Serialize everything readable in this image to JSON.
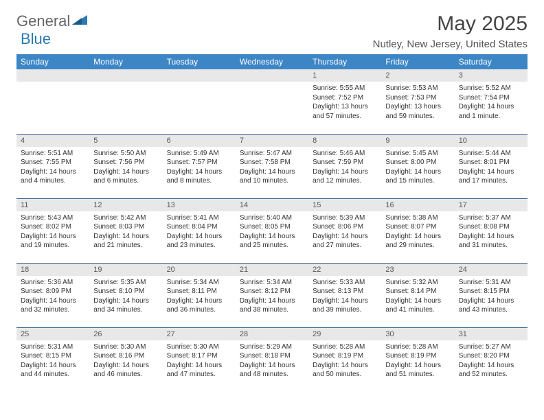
{
  "logo": {
    "part1": "General",
    "part2": "Blue"
  },
  "title": "May 2025",
  "location": "Nutley, New Jersey, United States",
  "colors": {
    "header_bg": "#3d86c6",
    "header_text": "#ffffff",
    "daynum_bg": "#e8e8e8",
    "border": "#2a5a8a",
    "logo_blue": "#2a7ab0"
  },
  "day_headers": [
    "Sunday",
    "Monday",
    "Tuesday",
    "Wednesday",
    "Thursday",
    "Friday",
    "Saturday"
  ],
  "weeks": [
    [
      null,
      null,
      null,
      null,
      {
        "n": "1",
        "sr": "5:55 AM",
        "ss": "7:52 PM",
        "dl": "13 hours and 57 minutes."
      },
      {
        "n": "2",
        "sr": "5:53 AM",
        "ss": "7:53 PM",
        "dl": "13 hours and 59 minutes."
      },
      {
        "n": "3",
        "sr": "5:52 AM",
        "ss": "7:54 PM",
        "dl": "14 hours and 1 minute."
      }
    ],
    [
      {
        "n": "4",
        "sr": "5:51 AM",
        "ss": "7:55 PM",
        "dl": "14 hours and 4 minutes."
      },
      {
        "n": "5",
        "sr": "5:50 AM",
        "ss": "7:56 PM",
        "dl": "14 hours and 6 minutes."
      },
      {
        "n": "6",
        "sr": "5:49 AM",
        "ss": "7:57 PM",
        "dl": "14 hours and 8 minutes."
      },
      {
        "n": "7",
        "sr": "5:47 AM",
        "ss": "7:58 PM",
        "dl": "14 hours and 10 minutes."
      },
      {
        "n": "8",
        "sr": "5:46 AM",
        "ss": "7:59 PM",
        "dl": "14 hours and 12 minutes."
      },
      {
        "n": "9",
        "sr": "5:45 AM",
        "ss": "8:00 PM",
        "dl": "14 hours and 15 minutes."
      },
      {
        "n": "10",
        "sr": "5:44 AM",
        "ss": "8:01 PM",
        "dl": "14 hours and 17 minutes."
      }
    ],
    [
      {
        "n": "11",
        "sr": "5:43 AM",
        "ss": "8:02 PM",
        "dl": "14 hours and 19 minutes."
      },
      {
        "n": "12",
        "sr": "5:42 AM",
        "ss": "8:03 PM",
        "dl": "14 hours and 21 minutes."
      },
      {
        "n": "13",
        "sr": "5:41 AM",
        "ss": "8:04 PM",
        "dl": "14 hours and 23 minutes."
      },
      {
        "n": "14",
        "sr": "5:40 AM",
        "ss": "8:05 PM",
        "dl": "14 hours and 25 minutes."
      },
      {
        "n": "15",
        "sr": "5:39 AM",
        "ss": "8:06 PM",
        "dl": "14 hours and 27 minutes."
      },
      {
        "n": "16",
        "sr": "5:38 AM",
        "ss": "8:07 PM",
        "dl": "14 hours and 29 minutes."
      },
      {
        "n": "17",
        "sr": "5:37 AM",
        "ss": "8:08 PM",
        "dl": "14 hours and 31 minutes."
      }
    ],
    [
      {
        "n": "18",
        "sr": "5:36 AM",
        "ss": "8:09 PM",
        "dl": "14 hours and 32 minutes."
      },
      {
        "n": "19",
        "sr": "5:35 AM",
        "ss": "8:10 PM",
        "dl": "14 hours and 34 minutes."
      },
      {
        "n": "20",
        "sr": "5:34 AM",
        "ss": "8:11 PM",
        "dl": "14 hours and 36 minutes."
      },
      {
        "n": "21",
        "sr": "5:34 AM",
        "ss": "8:12 PM",
        "dl": "14 hours and 38 minutes."
      },
      {
        "n": "22",
        "sr": "5:33 AM",
        "ss": "8:13 PM",
        "dl": "14 hours and 39 minutes."
      },
      {
        "n": "23",
        "sr": "5:32 AM",
        "ss": "8:14 PM",
        "dl": "14 hours and 41 minutes."
      },
      {
        "n": "24",
        "sr": "5:31 AM",
        "ss": "8:15 PM",
        "dl": "14 hours and 43 minutes."
      }
    ],
    [
      {
        "n": "25",
        "sr": "5:31 AM",
        "ss": "8:15 PM",
        "dl": "14 hours and 44 minutes."
      },
      {
        "n": "26",
        "sr": "5:30 AM",
        "ss": "8:16 PM",
        "dl": "14 hours and 46 minutes."
      },
      {
        "n": "27",
        "sr": "5:30 AM",
        "ss": "8:17 PM",
        "dl": "14 hours and 47 minutes."
      },
      {
        "n": "28",
        "sr": "5:29 AM",
        "ss": "8:18 PM",
        "dl": "14 hours and 48 minutes."
      },
      {
        "n": "29",
        "sr": "5:28 AM",
        "ss": "8:19 PM",
        "dl": "14 hours and 50 minutes."
      },
      {
        "n": "30",
        "sr": "5:28 AM",
        "ss": "8:19 PM",
        "dl": "14 hours and 51 minutes."
      },
      {
        "n": "31",
        "sr": "5:27 AM",
        "ss": "8:20 PM",
        "dl": "14 hours and 52 minutes."
      }
    ]
  ],
  "labels": {
    "sunrise": "Sunrise:",
    "sunset": "Sunset:",
    "daylight": "Daylight:"
  }
}
